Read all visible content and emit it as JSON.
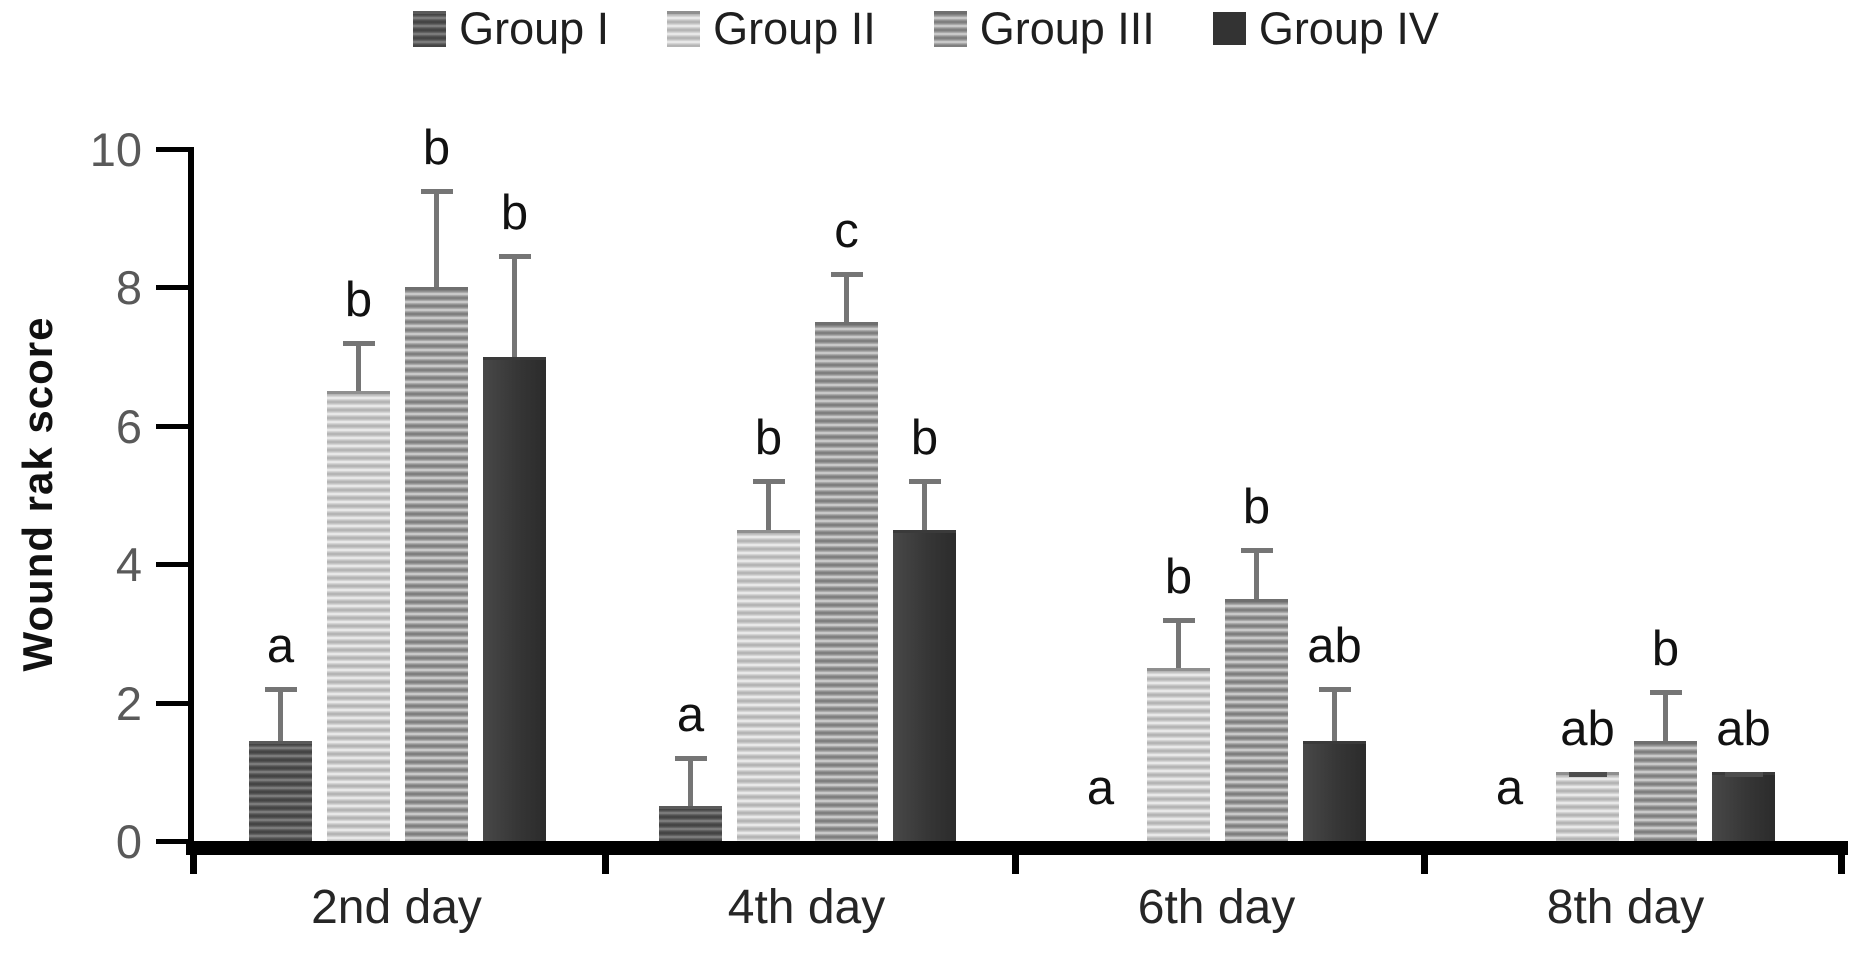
{
  "chart_data": {
    "type": "bar",
    "title": "",
    "ylabel": "Wound rak score",
    "xlabel": "",
    "ylim": [
      0,
      10
    ],
    "yticks": [
      0,
      2,
      4,
      6,
      8,
      10
    ],
    "grid": "off",
    "legend_position": "top",
    "categories": [
      "2nd day",
      "4th day",
      "6th day",
      "8th day"
    ],
    "series": [
      {
        "name": "Group I",
        "style": "striped-dark",
        "values": [
          1.45,
          0.5,
          0,
          0
        ],
        "errors": [
          0.75,
          0.7,
          null,
          null
        ],
        "sig_letters": [
          "a",
          "a",
          "a",
          "a"
        ]
      },
      {
        "name": "Group II",
        "style": "striped-light",
        "values": [
          6.5,
          4.5,
          2.5,
          1.0
        ],
        "errors": [
          0.7,
          0.7,
          0.7,
          0
        ],
        "sig_letters": [
          "b",
          "b",
          "b",
          "ab"
        ]
      },
      {
        "name": "Group III",
        "style": "striped-medium",
        "values": [
          8.0,
          7.5,
          3.5,
          1.45
        ],
        "errors": [
          1.4,
          0.7,
          0.7,
          0.7
        ],
        "sig_letters": [
          "b",
          "c",
          "b",
          "b"
        ]
      },
      {
        "name": "Group IV",
        "style": "solid-dark",
        "values": [
          7.0,
          4.5,
          1.45,
          1.0
        ],
        "errors": [
          1.45,
          0.7,
          0.75,
          0
        ],
        "sig_letters": [
          "b",
          "b",
          "ab",
          "ab"
        ]
      }
    ],
    "colors": {
      "axis": "#000000",
      "error_bar": "#757575",
      "tick_label": "#595959",
      "text": "#111111",
      "group1_stripe_dark": "#3f3f3f",
      "group1_stripe_light": "#878787",
      "group2_stripe_dark": "#aeaeae",
      "group2_stripe_light": "#f2f2f2",
      "group3_stripe_dark": "#767676",
      "group3_stripe_light": "#d7d7d7",
      "group4_solid": "#333333"
    }
  }
}
